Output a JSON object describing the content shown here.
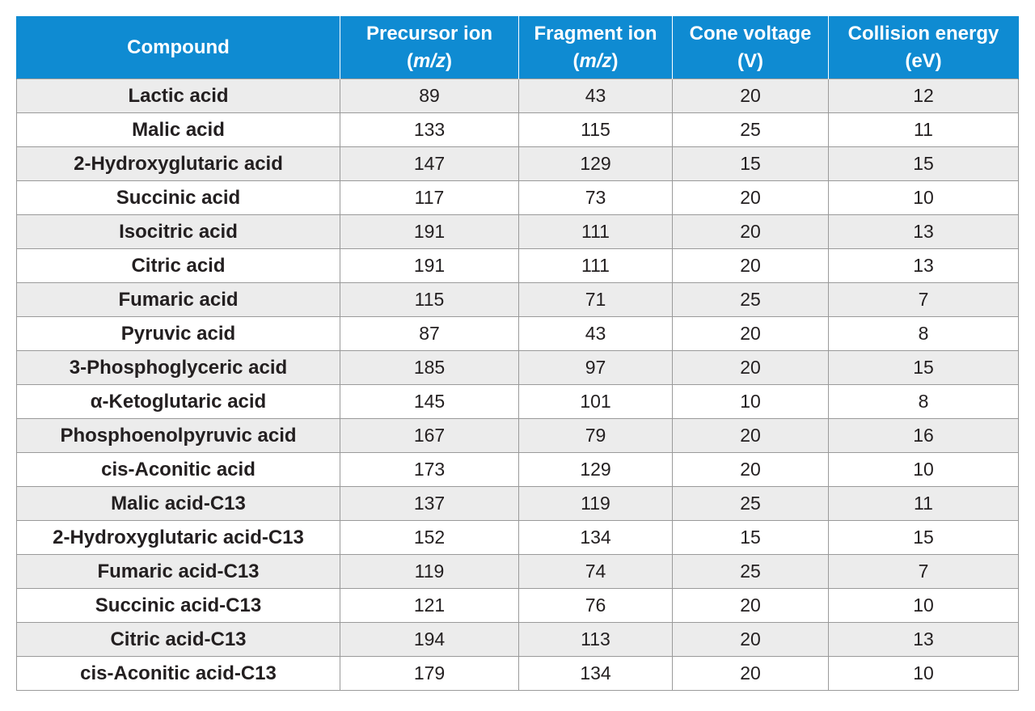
{
  "table": {
    "headers": [
      {
        "line1": "Compound",
        "line2": "",
        "line2_open": "",
        "line2_italic": "",
        "line2_close": ""
      },
      {
        "line1": "Precursor ion",
        "line2_open": "(",
        "line2_italic": "m/z",
        "line2_close": ")"
      },
      {
        "line1": "Fragment ion",
        "line2_open": "(",
        "line2_italic": "m/z",
        "line2_close": ")"
      },
      {
        "line1": "Cone voltage",
        "line2_open": "(V)",
        "line2_italic": "",
        "line2_close": ""
      },
      {
        "line1": "Collision energy",
        "line2_open": "(eV)",
        "line2_italic": "",
        "line2_close": ""
      }
    ],
    "rows": [
      [
        "Lactic acid",
        "89",
        "43",
        "20",
        "12"
      ],
      [
        "Malic acid",
        "133",
        "115",
        "25",
        "11"
      ],
      [
        "2-Hydroxyglutaric acid",
        "147",
        "129",
        "15",
        "15"
      ],
      [
        "Succinic acid",
        "117",
        "73",
        "20",
        "10"
      ],
      [
        "Isocitric acid",
        "191",
        "111",
        "20",
        "13"
      ],
      [
        "Citric acid",
        "191",
        "111",
        "20",
        "13"
      ],
      [
        "Fumaric acid",
        "115",
        "71",
        "25",
        "7"
      ],
      [
        "Pyruvic acid",
        "87",
        "43",
        "20",
        "8"
      ],
      [
        "3-Phosphoglyceric acid",
        "185",
        "97",
        "20",
        "15"
      ],
      [
        "α-Ketoglutaric acid",
        "145",
        "101",
        "10",
        "8"
      ],
      [
        "Phosphoenolpyruvic acid",
        "167",
        "79",
        "20",
        "16"
      ],
      [
        "cis-Aconitic acid",
        "173",
        "129",
        "20",
        "10"
      ],
      [
        "Malic acid-C13",
        "137",
        "119",
        "25",
        "11"
      ],
      [
        "2-Hydroxyglutaric acid-C13",
        "152",
        "134",
        "15",
        "15"
      ],
      [
        "Fumaric acid-C13",
        "119",
        "74",
        "25",
        "7"
      ],
      [
        "Succinic acid-C13",
        "121",
        "76",
        "20",
        "10"
      ],
      [
        "Citric acid-C13",
        "194",
        "113",
        "20",
        "13"
      ],
      [
        "cis-Aconitic acid-C13",
        "179",
        "134",
        "20",
        "10"
      ]
    ]
  },
  "colors": {
    "header_bg": "#0f8bd2",
    "header_text": "#ffffff",
    "row_shaded": "#ececec",
    "row_plain": "#ffffff",
    "border": "#9a9a9a"
  }
}
